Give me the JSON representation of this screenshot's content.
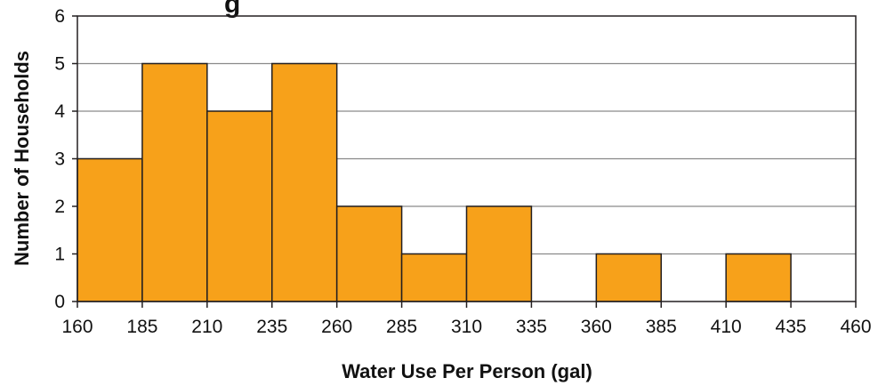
{
  "chart_data": {
    "type": "bar",
    "title": "g",
    "xlabel": "Water Use Per Person (gal)",
    "ylabel": "Number of Households",
    "bins": [
      {
        "start": 160,
        "end": 185,
        "count": 3
      },
      {
        "start": 185,
        "end": 210,
        "count": 5
      },
      {
        "start": 210,
        "end": 235,
        "count": 4
      },
      {
        "start": 235,
        "end": 260,
        "count": 5
      },
      {
        "start": 260,
        "end": 285,
        "count": 2
      },
      {
        "start": 285,
        "end": 310,
        "count": 1
      },
      {
        "start": 310,
        "end": 335,
        "count": 2
      },
      {
        "start": 335,
        "end": 360,
        "count": 0
      },
      {
        "start": 360,
        "end": 385,
        "count": 1
      },
      {
        "start": 385,
        "end": 410,
        "count": 0
      },
      {
        "start": 410,
        "end": 435,
        "count": 1
      },
      {
        "start": 435,
        "end": 460,
        "count": 0
      }
    ],
    "x_ticks": [
      "160",
      "185",
      "210",
      "235",
      "260",
      "285",
      "310",
      "335",
      "360",
      "385",
      "410",
      "435",
      "460"
    ],
    "y_ticks": [
      "0",
      "1",
      "2",
      "3",
      "4",
      "5",
      "6"
    ],
    "xlim": [
      160,
      460
    ],
    "ylim": [
      0,
      6
    ],
    "grid": true,
    "bar_color": "#F7A11A",
    "bar_edge_color": "#231F20",
    "grid_color": "#8A8A8A"
  }
}
